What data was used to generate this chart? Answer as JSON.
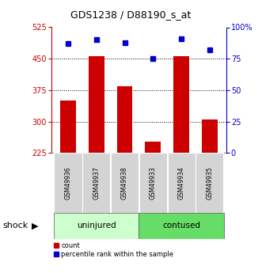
{
  "title": "GDS1238 / D88190_s_at",
  "samples": [
    "GSM49936",
    "GSM49937",
    "GSM49938",
    "GSM49933",
    "GSM49934",
    "GSM49935"
  ],
  "groups": [
    "uninjured",
    "uninjured",
    "uninjured",
    "contused",
    "contused",
    "contused"
  ],
  "counts": [
    350,
    456,
    385,
    252,
    456,
    305
  ],
  "percentiles": [
    87,
    90,
    88,
    75,
    91,
    82
  ],
  "left_ylim": [
    225,
    525
  ],
  "left_yticks": [
    225,
    300,
    375,
    450,
    525
  ],
  "right_ylim": [
    0,
    100
  ],
  "right_yticks": [
    0,
    25,
    50,
    75,
    100
  ],
  "bar_color": "#cc0000",
  "dot_color": "#0000cc",
  "bar_width": 0.55,
  "group_colors": {
    "uninjured": "#ccffcc",
    "contused": "#66dd66"
  },
  "left_axis_color": "#cc0000",
  "right_axis_color": "#0000cc",
  "grid_color": "#000000",
  "legend_count_label": "count",
  "legend_pct_label": "percentile rank within the sample"
}
